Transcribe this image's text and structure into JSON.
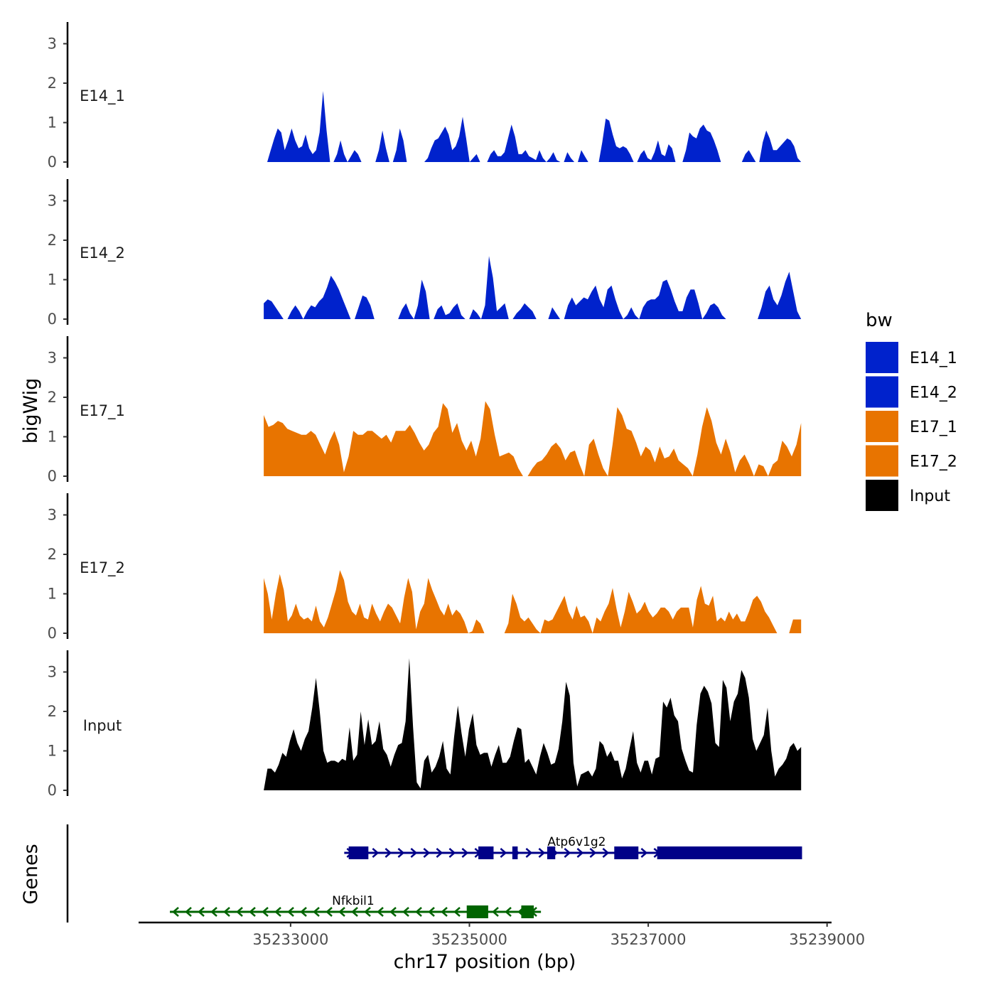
{
  "chart_data": {
    "type": "area",
    "title": "",
    "ylabel": "bigWig",
    "xlabel": "chr17 position (bp)",
    "genes_panel_label": "Genes",
    "ylim": [
      0,
      3.5
    ],
    "y_ticks": [
      {
        "value": 0,
        "label": "0"
      },
      {
        "value": 1,
        "label": "1"
      },
      {
        "value": 2,
        "label": "2"
      },
      {
        "value": 3,
        "label": "3"
      }
    ],
    "xlim": [
      35231300,
      35239050
    ],
    "x_ticks": [
      {
        "value": 35233000,
        "label": "35233000"
      },
      {
        "value": 35235000,
        "label": "35235000"
      },
      {
        "value": 35237000,
        "label": "35237000"
      },
      {
        "value": 35239000,
        "label": "35239000"
      }
    ],
    "data_range": [
      35232700,
      35238710
    ],
    "legend": {
      "title": "bw",
      "position": "right",
      "entries": [
        {
          "label": "E14_1",
          "color": "#0022cc"
        },
        {
          "label": "E14_2",
          "color": "#0022cc"
        },
        {
          "label": "E17_1",
          "color": "#e87400"
        },
        {
          "label": "E17_2",
          "color": "#e87400"
        },
        {
          "label": "Input",
          "color": "#000000"
        }
      ]
    },
    "series": [
      {
        "name": "E14_1",
        "color": "#0022cc",
        "values": [
          0,
          0,
          0.3,
          0.6,
          0.85,
          0.75,
          0.3,
          0.55,
          0.85,
          0.55,
          0.35,
          0.4,
          0.7,
          0.35,
          0.2,
          0.3,
          0.75,
          1.8,
          0.8,
          0,
          0,
          0.2,
          0.55,
          0.2,
          0,
          0.15,
          0.3,
          0.2,
          0,
          0,
          0,
          0,
          0,
          0.3,
          0.8,
          0.35,
          0,
          0,
          0.3,
          0.85,
          0.55,
          0,
          0,
          0,
          0,
          0,
          0,
          0.1,
          0.35,
          0.55,
          0.6,
          0.75,
          0.9,
          0.7,
          0.3,
          0.4,
          0.65,
          1.15,
          0.6,
          0,
          0.1,
          0.2,
          0,
          0,
          0,
          0.2,
          0.3,
          0.15,
          0.15,
          0.25,
          0.6,
          0.95,
          0.65,
          0.2,
          0.2,
          0.3,
          0.15,
          0.1,
          0.05,
          0.3,
          0.1,
          0,
          0.1,
          0.25,
          0.05,
          0,
          0,
          0.25,
          0.1,
          0,
          0,
          0.3,
          0.15,
          0,
          0,
          0,
          0,
          0.5,
          1.1,
          1.05,
          0.7,
          0.4,
          0.35,
          0.4,
          0.35,
          0.2,
          0,
          0,
          0.2,
          0.3,
          0.1,
          0.05,
          0.25,
          0.55,
          0.2,
          0.15,
          0.45,
          0.35,
          0,
          0,
          0,
          0.3,
          0.75,
          0.65,
          0.6,
          0.85,
          0.95,
          0.8,
          0.75,
          0.55,
          0.3,
          0,
          0,
          0,
          0,
          0,
          0,
          0,
          0.2,
          0.3,
          0.15,
          0,
          0,
          0.5,
          0.8,
          0.6,
          0.3,
          0.3,
          0.4,
          0.5,
          0.6,
          0.55,
          0.4,
          0.1,
          0
        ],
        "gaps": [
          [
            35233070,
            35233220
          ],
          [
            35233490,
            35233630
          ],
          [
            35234370,
            35234470
          ],
          [
            35234570,
            35234700
          ],
          [
            35235100,
            35235150
          ],
          [
            35235150,
            35235160
          ],
          [
            35235420,
            35235500
          ],
          [
            35235600,
            35235670
          ],
          [
            35235790,
            35235850
          ],
          [
            35236340,
            35236400
          ],
          [
            35236820,
            35236880
          ],
          [
            35237200,
            35237270
          ],
          [
            35237620,
            35237770
          ],
          [
            35237920,
            35238040
          ]
        ]
      },
      {
        "name": "E14_2",
        "color": "#0022cc",
        "values": [
          0.4,
          0.5,
          0.45,
          0.3,
          0.15,
          0,
          0,
          0.2,
          0.35,
          0.2,
          0,
          0.2,
          0.35,
          0.3,
          0.45,
          0.55,
          0.8,
          1.1,
          0.95,
          0.75,
          0.5,
          0.25,
          0,
          0,
          0.3,
          0.6,
          0.55,
          0.35,
          0,
          0,
          0,
          0,
          0,
          0,
          0,
          0.25,
          0.4,
          0.15,
          0,
          0.35,
          1.0,
          0.7,
          0,
          0,
          0.25,
          0.35,
          0.1,
          0.15,
          0.3,
          0.4,
          0.1,
          0,
          0,
          0.25,
          0.15,
          0,
          0.35,
          1.6,
          1.05,
          0.2,
          0.3,
          0.4,
          0,
          0,
          0.15,
          0.25,
          0.4,
          0.3,
          0.2,
          0,
          0,
          0,
          0,
          0.3,
          0.15,
          0,
          0,
          0.35,
          0.55,
          0.35,
          0.45,
          0.55,
          0.5,
          0.7,
          0.85,
          0.5,
          0.3,
          0.75,
          0.85,
          0.5,
          0.2,
          0,
          0.1,
          0.3,
          0.1,
          0,
          0.3,
          0.45,
          0.5,
          0.5,
          0.6,
          0.95,
          1.0,
          0.75,
          0.45,
          0.2,
          0.2,
          0.55,
          0.75,
          0.75,
          0.4,
          0,
          0.15,
          0.35,
          0.4,
          0.3,
          0.1,
          0,
          0,
          0,
          0,
          0,
          0,
          0,
          0,
          0,
          0.3,
          0.7,
          0.85,
          0.5,
          0.35,
          0.6,
          0.95,
          1.2,
          0.7,
          0.2,
          0
        ],
        "gaps": [
          [
            35233160,
            35233300
          ],
          [
            35233660,
            35233850
          ],
          [
            35234400,
            35234480
          ],
          [
            35235200,
            35235290
          ],
          [
            35237600,
            35237840
          ],
          [
            35237890,
            35237900
          ]
        ]
      },
      {
        "name": "E17_1",
        "color": "#e87400",
        "values": [
          1.55,
          1.25,
          1.3,
          1.4,
          1.35,
          1.2,
          1.15,
          1.1,
          1.05,
          1.05,
          1.15,
          1.05,
          0.8,
          0.55,
          0.9,
          1.15,
          0.8,
          0.1,
          0.5,
          1.15,
          1.05,
          1.05,
          1.15,
          1.15,
          1.05,
          0.95,
          1.05,
          0.85,
          1.15,
          1.15,
          1.15,
          1.3,
          1.1,
          0.85,
          0.65,
          0.8,
          1.1,
          1.25,
          1.85,
          1.7,
          1.1,
          1.35,
          0.9,
          0.65,
          0.9,
          0.5,
          0.95,
          1.9,
          1.7,
          1.05,
          0.5,
          0.55,
          0.6,
          0.5,
          0.2,
          0,
          0,
          0.2,
          0.35,
          0.4,
          0.55,
          0.75,
          0.85,
          0.7,
          0.4,
          0.6,
          0.65,
          0.3,
          0,
          0.8,
          0.95,
          0.55,
          0.2,
          0,
          0.8,
          1.75,
          1.55,
          1.2,
          1.15,
          0.85,
          0.5,
          0.75,
          0.65,
          0.35,
          0.75,
          0.45,
          0.5,
          0.7,
          0.4,
          0.3,
          0.2,
          0,
          0.55,
          1.25,
          1.75,
          1.4,
          0.85,
          0.55,
          0.95,
          0.6,
          0.1,
          0.4,
          0.55,
          0.3,
          0,
          0.3,
          0.25,
          0,
          0.3,
          0.4,
          0.9,
          0.75,
          0.5,
          0.8,
          1.35
        ],
        "gaps": [
          [
            35235630,
            35235720
          ],
          [
            35236380,
            35236430
          ],
          [
            35237090,
            35237150
          ],
          [
            35237780,
            35237890
          ],
          [
            35237930,
            35237950
          ],
          [
            35238100,
            35238150
          ]
        ]
      },
      {
        "name": "E17_2",
        "color": "#e87400",
        "values": [
          1.4,
          1.0,
          0.35,
          1.0,
          1.5,
          1.1,
          0.3,
          0.45,
          0.75,
          0.45,
          0.35,
          0.4,
          0.3,
          0.7,
          0.3,
          0.15,
          0.4,
          0.75,
          1.1,
          1.6,
          1.35,
          0.8,
          0.55,
          0.45,
          0.75,
          0.4,
          0.35,
          0.75,
          0.5,
          0.3,
          0.55,
          0.75,
          0.65,
          0.45,
          0.25,
          0.9,
          1.4,
          1.05,
          0.1,
          0.55,
          0.75,
          1.4,
          1.1,
          0.85,
          0.6,
          0.45,
          0.75,
          0.45,
          0.6,
          0.5,
          0.3,
          0,
          0.05,
          0.35,
          0.25,
          0,
          0,
          0,
          0,
          0,
          0,
          0.25,
          1.0,
          0.75,
          0.4,
          0.3,
          0.4,
          0.25,
          0.1,
          0,
          0.35,
          0.3,
          0.35,
          0.55,
          0.75,
          0.95,
          0.55,
          0.35,
          0.7,
          0.4,
          0.45,
          0.3,
          0,
          0.4,
          0.3,
          0.55,
          0.75,
          1.15,
          0.6,
          0.15,
          0.55,
          1.05,
          0.8,
          0.5,
          0.6,
          0.8,
          0.55,
          0.4,
          0.5,
          0.65,
          0.65,
          0.55,
          0.35,
          0.55,
          0.65,
          0.65,
          0.65,
          0.15,
          0.85,
          1.2,
          0.75,
          0.7,
          0.95,
          0.3,
          0.4,
          0.3,
          0.55,
          0.35,
          0.5,
          0.3,
          0.3,
          0.55,
          0.85,
          0.95,
          0.8,
          0.55,
          0.4,
          0.2,
          0,
          0,
          0,
          0,
          0.35,
          0.35,
          0.35
        ],
        "gaps": [
          [
            35233100,
            35233120
          ],
          [
            35234330,
            35234470
          ],
          [
            35234470,
            35234700
          ],
          [
            35235150,
            35235230
          ],
          [
            35236350,
            35236400
          ],
          [
            35237550,
            35237600
          ],
          [
            35238100,
            35238170
          ],
          [
            35238420,
            35238510
          ],
          [
            35238600,
            35238630
          ]
        ]
      },
      {
        "name": "Input",
        "color": "#000000",
        "values": [
          0,
          0.55,
          0.55,
          0.45,
          0.65,
          0.95,
          0.85,
          1.25,
          1.55,
          1.2,
          1.0,
          1.3,
          1.5,
          2.1,
          2.85,
          2.0,
          1.0,
          0.7,
          0.75,
          0.75,
          0.7,
          0.8,
          0.75,
          1.6,
          0.75,
          0.9,
          2.0,
          1.15,
          1.8,
          1.15,
          1.25,
          1.75,
          1.05,
          0.9,
          0.6,
          0.9,
          1.15,
          1.2,
          1.75,
          3.35,
          1.6,
          0.2,
          0.05,
          0.75,
          0.9,
          0.45,
          0.6,
          0.85,
          1.25,
          0.55,
          0.4,
          1.35,
          2.15,
          1.45,
          0.85,
          1.55,
          1.95,
          1.15,
          0.9,
          0.95,
          0.95,
          0.6,
          0.9,
          1.15,
          0.7,
          0.7,
          0.85,
          1.25,
          1.6,
          1.55,
          0.7,
          0.8,
          0.6,
          0.4,
          0.85,
          1.2,
          0.95,
          0.65,
          0.7,
          1.05,
          1.75,
          2.75,
          2.4,
          0.7,
          0.1,
          0.4,
          0.45,
          0.5,
          0.35,
          0.55,
          1.25,
          1.15,
          0.85,
          1.0,
          0.75,
          0.75,
          0.3,
          0.55,
          1.05,
          1.5,
          0.7,
          0.45,
          0.75,
          0.75,
          0.4,
          0.8,
          0.85,
          2.25,
          2.1,
          2.35,
          1.9,
          1.75,
          1.05,
          0.75,
          0.5,
          0.45,
          1.65,
          2.45,
          2.65,
          2.5,
          2.2,
          1.2,
          1.1,
          2.8,
          2.6,
          1.75,
          2.25,
          2.45,
          3.05,
          2.85,
          2.35,
          1.3,
          1.0,
          1.2,
          1.4,
          2.1,
          1.0,
          0.35,
          0.55,
          0.65,
          0.8,
          1.1,
          1.2,
          1.0,
          1.1
        ]
      },
      {
        "name": "_note",
        "color": "",
        "values": []
      }
    ],
    "genes": [
      {
        "name": "Atp6v1g2",
        "strand": "+",
        "start": 35233600,
        "end": 35238720,
        "color": "#000088",
        "label_pos": 35236200,
        "exons": [
          [
            35233650,
            35233870
          ],
          [
            35235100,
            35235270
          ],
          [
            35235480,
            35235540
          ],
          [
            35235870,
            35235960
          ],
          [
            35236620,
            35236890
          ],
          [
            35237100,
            35238720
          ]
        ]
      },
      {
        "name": "Nfkbil1",
        "strand": "-",
        "start": 35231650,
        "end": 35235800,
        "color": "#006400",
        "label_pos": 35233700,
        "exons": [
          [
            35234970,
            35235210
          ],
          [
            35235580,
            35235720
          ]
        ]
      }
    ]
  }
}
